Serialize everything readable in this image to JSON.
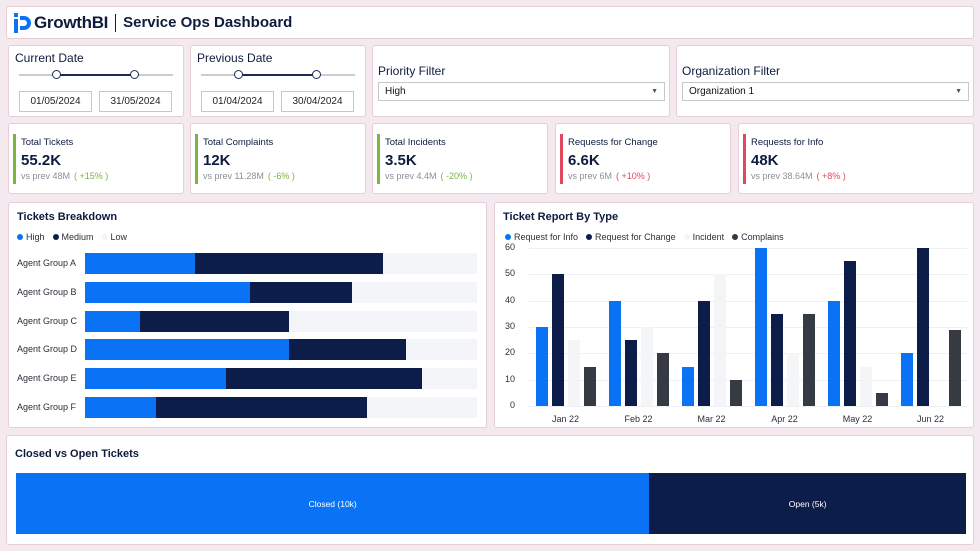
{
  "header": {
    "logo_text": "GrowthBI",
    "title": "Service Ops Dashboard"
  },
  "colors": {
    "high": "#0a73f5",
    "medium": "#0c1d4a",
    "low": "#f3f5f8",
    "request_info": "#0a73f5",
    "request_change": "#0c1d4a",
    "incident": "#f4f5f7",
    "complains": "#363a42",
    "positive": "#7cb342",
    "negative": "#e0485d"
  },
  "current_date": {
    "label": "Current Date",
    "start": "01/05/2024",
    "end": "31/05/2024"
  },
  "previous_date": {
    "label": "Previous Date",
    "start": "01/04/2024",
    "end": "30/04/2024"
  },
  "priority_filter": {
    "label": "Priority Filter",
    "value": "High"
  },
  "organization_filter": {
    "label": "Organization Filter",
    "value": "Organization 1"
  },
  "kpis": [
    {
      "title": "Total Tickets",
      "value": "55.2K",
      "prev": "vs prev 48M",
      "change": "( +15% )",
      "trend": "positive"
    },
    {
      "title": "Total Complaints",
      "value": "12K",
      "prev": "vs prev 11.28M",
      "change": "( -6% )",
      "trend": "positive"
    },
    {
      "title": "Total Incidents",
      "value": "3.5K",
      "prev": "vs prev 4.4M",
      "change": "( -20% )",
      "trend": "positive"
    },
    {
      "title": "Requests for Change",
      "value": "6.6K",
      "prev": "vs prev 6M",
      "change": "( +10% )",
      "trend": "negative"
    },
    {
      "title": "Requests for Info",
      "value": "48K",
      "prev": "vs prev 38.64M",
      "change": "( +8% )",
      "trend": "negative"
    }
  ],
  "tickets_breakdown": {
    "title": "Tickets Breakdown",
    "legend": [
      "High",
      "Medium",
      "Low"
    ]
  },
  "ticket_report": {
    "title": "Ticket Report By Type",
    "legend": [
      "Request for Info",
      "Request for Change",
      "Incident",
      "Complains"
    ]
  },
  "closed_open": {
    "title": "Closed vs Open Tickets",
    "closed_label": "Closed (10k)",
    "open_label": "Open (5k)"
  },
  "chart_data": [
    {
      "type": "bar",
      "orientation": "horizontal",
      "stacked": true,
      "title": "Tickets Breakdown",
      "categories": [
        "Agent Group A",
        "Agent Group B",
        "Agent Group C",
        "Agent Group D",
        "Agent Group E",
        "Agent Group F"
      ],
      "series": [
        {
          "name": "High",
          "values": [
            28,
            42,
            14,
            52,
            36,
            18
          ]
        },
        {
          "name": "Medium",
          "values": [
            48,
            26,
            38,
            30,
            50,
            54
          ]
        },
        {
          "name": "Low",
          "values": [
            24,
            32,
            48,
            18,
            14,
            28
          ]
        }
      ],
      "legend": "top-left"
    },
    {
      "type": "bar",
      "title": "Ticket Report By Type",
      "categories": [
        "Jan 22",
        "Feb 22",
        "Mar 22",
        "Apr 22",
        "May 22",
        "Jun 22"
      ],
      "series": [
        {
          "name": "Request for Info",
          "values": [
            30,
            40,
            15,
            60,
            40,
            20
          ]
        },
        {
          "name": "Request for Change",
          "values": [
            50,
            25,
            40,
            35,
            55,
            60
          ]
        },
        {
          "name": "Incident",
          "values": [
            25,
            30,
            50,
            20,
            15,
            0
          ]
        },
        {
          "name": "Complains",
          "values": [
            15,
            20,
            10,
            35,
            5,
            29
          ]
        }
      ],
      "yticks": [
        0,
        10,
        20,
        30,
        40,
        50,
        60
      ],
      "ylim": [
        0,
        60
      ],
      "grid": true,
      "legend": "top-left"
    },
    {
      "type": "bar",
      "orientation": "horizontal",
      "stacked": true,
      "title": "Closed vs Open Tickets",
      "categories": [
        "Closed (10k)",
        "Open (5k)"
      ],
      "values": [
        10,
        5
      ]
    }
  ]
}
